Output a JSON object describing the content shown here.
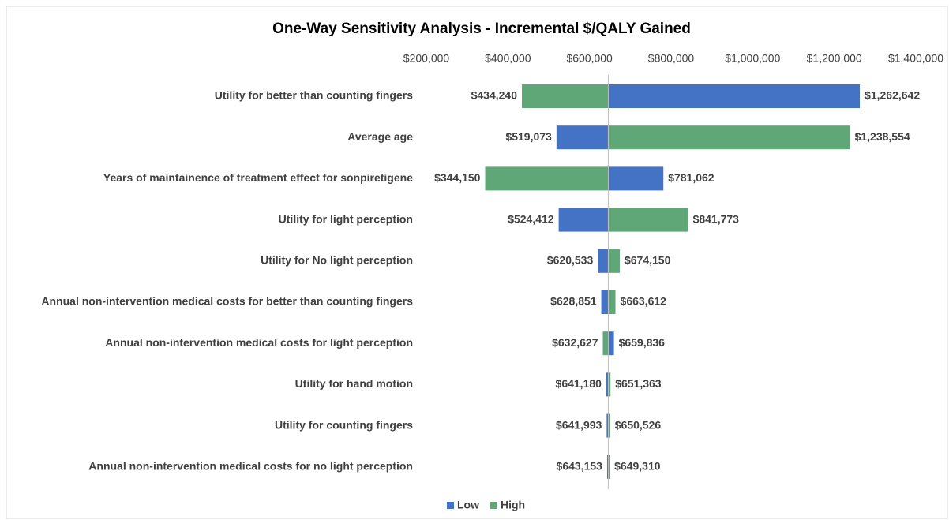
{
  "chart_data": {
    "type": "tornado",
    "title": "One-Way Sensitivity Analysis - Incremental $/QALY Gained",
    "categories": [
      "Utility for better than counting fingers",
      "Average age",
      "Years of maintainence of treatment effect for sonpiretigene",
      "Utility for light perception",
      "Utility for No light perception",
      "Annual non-intervention medical costs for better than counting fingers",
      "Annual non-intervention medical costs for light perception",
      "Utility for hand motion",
      "Utility for counting fingers",
      "Annual non-intervention medical costs for no light perception"
    ],
    "base": 646000,
    "series": [
      {
        "name": "Low",
        "color": "#4472c4",
        "values": [
          1262642,
          519073,
          781062,
          524412,
          620533,
          628851,
          659836,
          641180,
          641993,
          643153
        ],
        "value_labels": [
          "$1,262,642",
          "$519,073",
          "$781,062",
          "$524,412",
          "$620,533",
          "$628,851",
          "$659,836",
          "$641,180",
          "$641,993",
          "$643,153"
        ]
      },
      {
        "name": "High",
        "color": "#5fa777",
        "values": [
          434240,
          1238554,
          344150,
          841773,
          674150,
          663612,
          632627,
          651363,
          650526,
          649310
        ],
        "value_labels": [
          "$434,240",
          "$1,238,554",
          "$344,150",
          "$841,773",
          "$674,150",
          "$663,612",
          "$632,627",
          "$651,363",
          "$650,526",
          "$649,310"
        ]
      }
    ],
    "xlim": [
      200000,
      1400000
    ],
    "xticks": [
      {
        "value": 200000,
        "label": "$200,000"
      },
      {
        "value": 400000,
        "label": "$400,000"
      },
      {
        "value": 600000,
        "label": "$600,000"
      },
      {
        "value": 800000,
        "label": "$800,000"
      },
      {
        "value": 1000000,
        "label": "$1,000,000"
      },
      {
        "value": 1200000,
        "label": "$1,200,000"
      },
      {
        "value": 1400000,
        "label": "$1,400,000"
      }
    ],
    "legend": "bottom"
  }
}
